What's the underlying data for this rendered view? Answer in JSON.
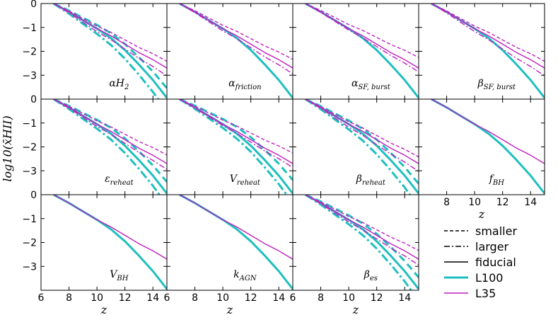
{
  "chart_data": {
    "type": "line",
    "ylabel": "log10(x̄HII)",
    "xlabel": "z",
    "xlim": [
      6,
      15
    ],
    "ylim": [
      -4,
      0
    ],
    "x_ticks": [
      6,
      8,
      10,
      12,
      14
    ],
    "y_ticks": [
      0,
      -1,
      -2,
      -3
    ],
    "panels": [
      {
        "label": "α_H2",
        "base": "αH",
        "sub": "2",
        "lines": {
          "smaller": [
            "L100",
            "L35"
          ],
          "larger": [
            "L100",
            "L35"
          ]
        }
      },
      {
        "label": "α_friction",
        "base": "α",
        "sub": "friction",
        "lines": {
          "smaller": [
            "L35"
          ],
          "larger": [
            "L35"
          ]
        }
      },
      {
        "label": "α_SF,burst",
        "base": "α",
        "sub": "SF, burst",
        "lines": {
          "smaller": [
            "L35"
          ],
          "larger": [
            "L35"
          ]
        }
      },
      {
        "label": "β_SF,burst",
        "base": "β",
        "sub": "SF, burst",
        "lines": {
          "smaller": [
            "L35"
          ],
          "larger": [
            "L35"
          ]
        }
      },
      {
        "label": "ε_reheat",
        "base": "ε",
        "sub": "reheat",
        "lines": {
          "smaller": [
            "L100",
            "L35"
          ],
          "larger": [
            "L100",
            "L35"
          ]
        }
      },
      {
        "label": "V_reheat",
        "base": "V",
        "sub": "reheat",
        "lines": {
          "smaller": [
            "L100",
            "L35"
          ],
          "larger": [
            "L100",
            "L35"
          ]
        }
      },
      {
        "label": "β_reheat",
        "base": "β",
        "sub": "reheat",
        "lines": {
          "smaller": [
            "L100",
            "L35"
          ],
          "larger": [
            "L100",
            "L35"
          ]
        }
      },
      {
        "label": "f_BH",
        "base": "f",
        "sub": "BH",
        "lines": {
          "smaller": [],
          "larger": []
        }
      },
      {
        "label": "V_BH",
        "base": "V",
        "sub": "BH",
        "lines": {
          "smaller": [],
          "larger": []
        }
      },
      {
        "label": "k_AGN",
        "base": "k",
        "sub": "AGN",
        "lines": {
          "smaller": [],
          "larger": []
        }
      },
      {
        "label": "β_es",
        "base": "β",
        "sub": "es",
        "lines": {
          "smaller": [
            "L100",
            "L35"
          ],
          "larger": [
            "L100",
            "L35"
          ]
        }
      }
    ],
    "fiducial": {
      "L100": {
        "z": [
          6.9,
          8,
          9,
          10,
          11,
          12,
          13,
          14,
          15
        ],
        "log10_xHII": [
          0,
          -0.35,
          -0.7,
          -1.05,
          -1.45,
          -1.95,
          -2.55,
          -3.2,
          -3.95
        ]
      },
      "L35": {
        "z": [
          6.9,
          8,
          9,
          10,
          11,
          12,
          13,
          14,
          15
        ],
        "log10_xHII": [
          0,
          -0.35,
          -0.7,
          -1.05,
          -1.35,
          -1.7,
          -2.05,
          -2.35,
          -2.7
        ]
      }
    },
    "legend": {
      "position": "lower-right",
      "styles": [
        "smaller",
        "larger",
        "fiducial"
      ],
      "series": [
        "L100",
        "L35"
      ]
    },
    "colors": {
      "L100": "#1fbfbf",
      "L35": "#bf1fbf",
      "fiducial": "#000000"
    }
  }
}
